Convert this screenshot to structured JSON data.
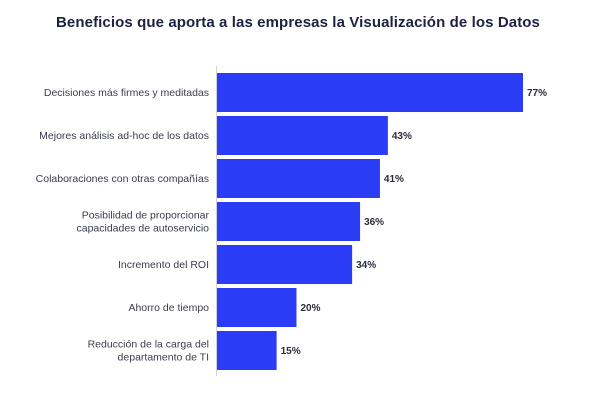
{
  "chart_data": {
    "type": "bar",
    "orientation": "horizontal",
    "title": "Beneficios que aporta a las empresas la Visualización de los Datos",
    "categories": [
      [
        "Decisiones más firmes y meditadas"
      ],
      [
        "Mejores análisis ad-hoc de los datos"
      ],
      [
        "Colaboraciones con otras compañías"
      ],
      [
        "Posibilidad de proporcionar",
        "capacidades de autoservicio"
      ],
      [
        "Incremento del ROI"
      ],
      [
        "Ahorro de tiempo"
      ],
      [
        "Reducción de la carga del",
        "departamento de TI"
      ]
    ],
    "values": [
      77,
      43,
      41,
      36,
      34,
      20,
      15
    ],
    "value_labels": [
      "77%",
      "43%",
      "41%",
      "36%",
      "34%",
      "20%",
      "15%"
    ],
    "bar_color": "#2a3cf5",
    "xlim": [
      0,
      77
    ],
    "grid": false
  }
}
